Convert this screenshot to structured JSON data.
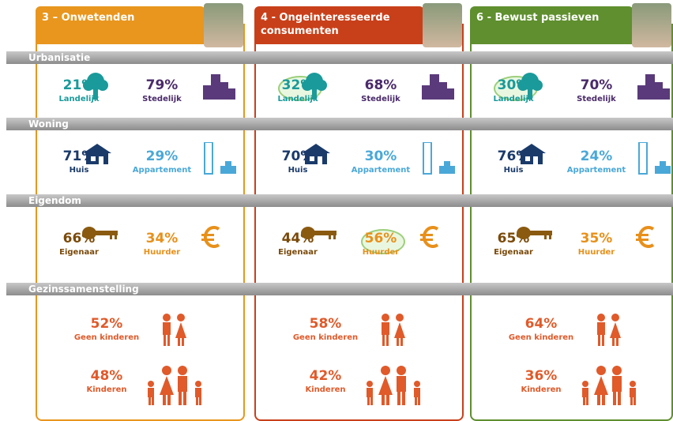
{
  "sections": [
    "Urbanisatie",
    "Woning",
    "Eigendom",
    "Gezinssamenstelling"
  ],
  "columns": [
    {
      "title": "3 – Onwetenden",
      "sections": [
        [
          {
            "pct": "21%",
            "label": "Landelijk"
          },
          {
            "pct": "79%",
            "label": "Stedelijk"
          }
        ],
        [
          {
            "pct": "71%",
            "label": "Huis"
          },
          {
            "pct": "29%",
            "label": "Appartement"
          }
        ],
        [
          {
            "pct": "66%",
            "label": "Eigenaar"
          },
          {
            "pct": "34%",
            "label": "Huurder"
          }
        ],
        [
          {
            "pct": "52%",
            "label": "Geen kinderen"
          },
          {
            "pct": "48%",
            "label": "Kinderen"
          }
        ]
      ]
    },
    {
      "title": "4 - Ongeinteresseerde consumenten",
      "sections": [
        [
          {
            "pct": "32%",
            "label": "Landelijk"
          },
          {
            "pct": "68%",
            "label": "Stedelijk"
          }
        ],
        [
          {
            "pct": "70%",
            "label": "Huis"
          },
          {
            "pct": "30%",
            "label": "Appartement"
          }
        ],
        [
          {
            "pct": "44%",
            "label": "Eigenaar"
          },
          {
            "pct": "56%",
            "label": "Huurder"
          }
        ],
        [
          {
            "pct": "58%",
            "label": "Geen kinderen"
          },
          {
            "pct": "42%",
            "label": "Kinderen"
          }
        ]
      ]
    },
    {
      "title": "6 - Bewust passieven",
      "sections": [
        [
          {
            "pct": "30%",
            "label": "Landelijk"
          },
          {
            "pct": "70%",
            "label": "Stedelijk"
          }
        ],
        [
          {
            "pct": "76%",
            "label": "Huis"
          },
          {
            "pct": "24%",
            "label": "Appartement"
          }
        ],
        [
          {
            "pct": "65%",
            "label": "Eigenaar"
          },
          {
            "pct": "35%",
            "label": "Huurder"
          }
        ],
        [
          {
            "pct": "64%",
            "label": "Geen kinderen"
          },
          {
            "pct": "36%",
            "label": "Kinderen"
          }
        ]
      ]
    }
  ]
}
